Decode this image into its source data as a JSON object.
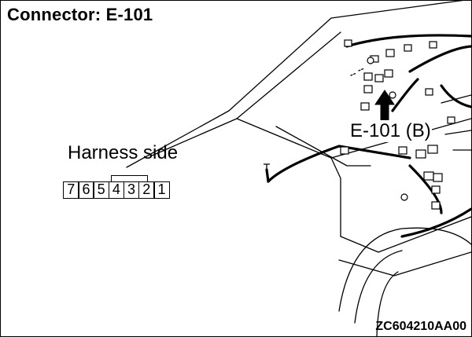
{
  "title": "Connector: E-101",
  "harness_label": "Harness side",
  "connector_pins": [
    "7",
    "6",
    "5",
    "4",
    "3",
    "2",
    "1"
  ],
  "callout_label": "E-101 (B)",
  "figure_code": "ZC604210AA00"
}
